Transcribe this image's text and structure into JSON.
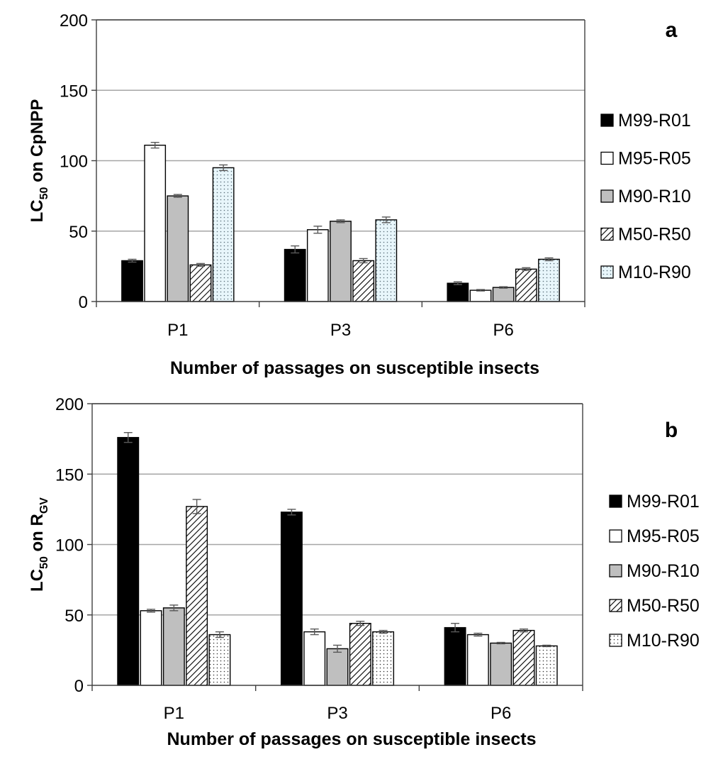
{
  "colors": {
    "M99-R01": "#000000",
    "M95-R05": "#ffffff",
    "M90-R10": "#bfbfbf",
    "M50-R50": "hatch",
    "M10-R90-a": "light-blue-dots",
    "M10-R90-b": "dots",
    "gridline": "#a6a6a6",
    "axis": "#404040"
  },
  "chart_data": [
    {
      "type": "bar",
      "panel_label": "a",
      "categories": [
        "P1",
        "P3",
        "P6"
      ],
      "xlabel": "Number of passages on susceptible insects",
      "ylabel_main": "LC",
      "ylabel_sub": "50",
      "ylabel_rest": " on CpNPP",
      "ylim": [
        0,
        200
      ],
      "yticks": [
        "0",
        "50",
        "100",
        "150",
        "200"
      ],
      "grid": true,
      "legend_position": "right",
      "series": [
        {
          "name": "M99-R01",
          "values": [
            29,
            37,
            13
          ],
          "errors": [
            1,
            2.5,
            1
          ]
        },
        {
          "name": "M95-R05",
          "values": [
            111,
            51,
            8
          ],
          "errors": [
            2,
            2.5,
            0.5
          ]
        },
        {
          "name": "M90-R10",
          "values": [
            75,
            57,
            10
          ],
          "errors": [
            1,
            1,
            0.5
          ]
        },
        {
          "name": "M50-R50",
          "values": [
            26,
            29,
            23
          ],
          "errors": [
            1,
            1.5,
            1
          ]
        },
        {
          "name": "M10-R90",
          "values": [
            95,
            58,
            30
          ],
          "errors": [
            2,
            2,
            1
          ]
        }
      ]
    },
    {
      "type": "bar",
      "panel_label": "b",
      "categories": [
        "P1",
        "P3",
        "P6"
      ],
      "xlabel": "Number of passages on susceptible insects",
      "ylabel_main": "LC",
      "ylabel_sub": "50",
      "ylabel_rest": " on R",
      "ylabel_sub2": "GV",
      "ylim": [
        0,
        200
      ],
      "yticks": [
        "0",
        "50",
        "100",
        "150",
        "200"
      ],
      "grid": true,
      "legend_position": "right",
      "series": [
        {
          "name": "M99-R01",
          "values": [
            176,
            123,
            41
          ],
          "errors": [
            3.5,
            2,
            3
          ]
        },
        {
          "name": "M95-R05",
          "values": [
            53,
            38,
            36
          ],
          "errors": [
            1,
            2,
            1
          ]
        },
        {
          "name": "M90-R10",
          "values": [
            55,
            26,
            30
          ],
          "errors": [
            2,
            2.5,
            0.5
          ]
        },
        {
          "name": "M50-R50",
          "values": [
            127,
            44,
            39
          ],
          "errors": [
            5,
            1.5,
            1
          ]
        },
        {
          "name": "M10-R90",
          "values": [
            36,
            38,
            28
          ],
          "errors": [
            2,
            1,
            0.5
          ]
        }
      ]
    }
  ]
}
